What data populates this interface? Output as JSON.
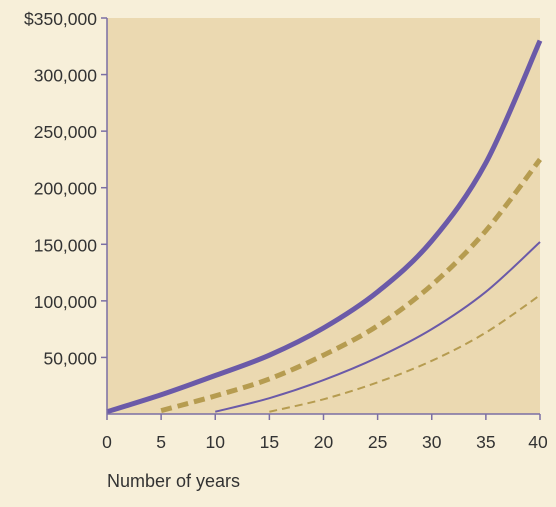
{
  "chart_data": {
    "type": "line",
    "title": "",
    "xlabel": "Number of years",
    "ylabel": "",
    "x_ticks": [
      "0",
      "5",
      "10",
      "15",
      "20",
      "25",
      "30",
      "35",
      "40"
    ],
    "y_ticks": [
      "50,000",
      "100,000",
      "150,000",
      "200,000",
      "250,000",
      "300,000",
      "$350,000"
    ],
    "xlim": [
      0,
      40
    ],
    "ylim": [
      0,
      350000
    ],
    "grid": false,
    "legend": "none",
    "colors": {
      "plot_background": "#ebd9b1",
      "page_background": "#f7efd9",
      "series_purple": "#6b5aa8",
      "series_gold": "#b69c50",
      "axis": "#7b6fa4",
      "text": "#333333"
    },
    "series": [
      {
        "style": "thick-solid-purple",
        "x": [
          0,
          5,
          10,
          15,
          20,
          25,
          30,
          35,
          40
        ],
        "y": [
          2000,
          17000,
          34000,
          52000,
          76000,
          108000,
          153000,
          222000,
          330000
        ]
      },
      {
        "style": "thick-dashed-gold",
        "x": [
          5,
          10,
          15,
          20,
          25,
          30,
          35,
          40
        ],
        "y": [
          3000,
          16000,
          31000,
          52000,
          78000,
          114000,
          162000,
          225000
        ]
      },
      {
        "style": "thin-solid-purple",
        "x": [
          10,
          15,
          20,
          25,
          30,
          35,
          40
        ],
        "y": [
          2000,
          14000,
          30000,
          50000,
          75000,
          108000,
          152000
        ]
      },
      {
        "style": "thin-dashed-gold",
        "x": [
          15,
          20,
          25,
          30,
          35,
          40
        ],
        "y": [
          2000,
          13000,
          28000,
          47000,
          72000,
          105000
        ]
      }
    ]
  }
}
